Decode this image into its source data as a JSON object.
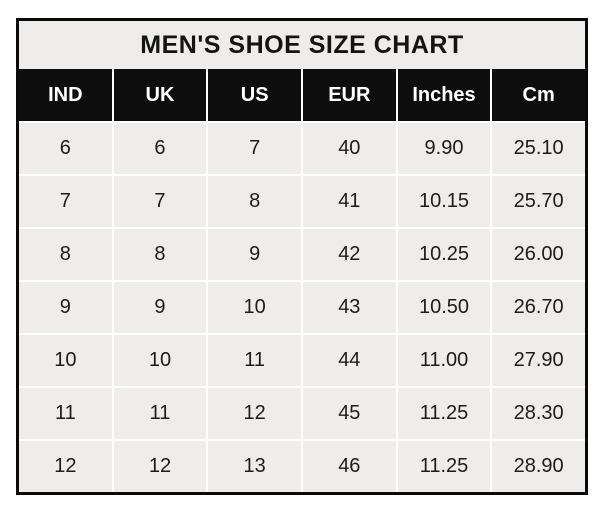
{
  "chart_data": {
    "type": "table",
    "title": "MEN'S SHOE SIZE CHART",
    "columns": [
      "IND",
      "UK",
      "US",
      "EUR",
      "Inches",
      "Cm"
    ],
    "rows": [
      [
        "6",
        "6",
        "7",
        "40",
        "9.90",
        "25.10"
      ],
      [
        "7",
        "7",
        "8",
        "41",
        "10.15",
        "25.70"
      ],
      [
        "8",
        "8",
        "9",
        "42",
        "10.25",
        "26.00"
      ],
      [
        "9",
        "9",
        "10",
        "43",
        "10.50",
        "26.70"
      ],
      [
        "10",
        "10",
        "11",
        "44",
        "11.00",
        "27.90"
      ],
      [
        "11",
        "11",
        "12",
        "45",
        "11.25",
        "28.30"
      ],
      [
        "12",
        "12",
        "13",
        "46",
        "11.25",
        "28.90"
      ]
    ],
    "layout_hints": {
      "header_position": "top",
      "grid": "white gridlines between cells",
      "title_position": "top band inside black outer border"
    }
  },
  "colors": {
    "page_background": "#ffffff",
    "outer_border": "#0a0a0a",
    "title_background": "#efedec",
    "header_background": "#0d0d0d",
    "header_text": "#ffffff",
    "cell_background": "#efedec",
    "cell_text": "#1c1c1c",
    "gridline": "#ffffff"
  }
}
